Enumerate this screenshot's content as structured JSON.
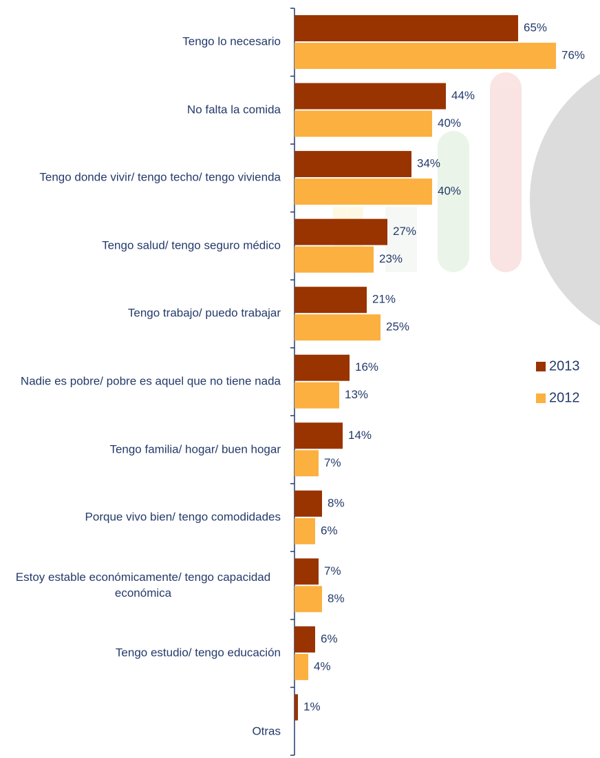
{
  "chart_data": {
    "type": "barh",
    "categories": [
      "Tengo lo necesario",
      "No falta la comida",
      "Tengo donde vivir/ tengo techo/ tengo vivienda",
      "Tengo salud/ tengo seguro médico",
      "Tengo trabajo/ puedo trabajar",
      "Nadie es pobre/ pobre es aquel que no tiene nada",
      "Tengo familia/ hogar/ buen hogar",
      "Porque vivo bien/ tengo comodidades",
      "Estoy estable económicamente/ tengo capacidad económica",
      "Tengo estudio/ tengo educación",
      "Otras"
    ],
    "series": [
      {
        "name": "2013",
        "color": "#993300",
        "values": [
          65,
          44,
          34,
          27,
          21,
          16,
          14,
          8,
          7,
          6,
          1
        ],
        "value_labels": [
          "65%",
          "44%",
          "34%",
          "27%",
          "21%",
          "16%",
          "14%",
          "8%",
          "7%",
          "6%",
          "1%"
        ]
      },
      {
        "name": "2012",
        "color": "#fbb040",
        "values": [
          76,
          40,
          40,
          23,
          25,
          13,
          7,
          6,
          8,
          4,
          null
        ],
        "value_labels": [
          "76%",
          "40%",
          "40%",
          "23%",
          "25%",
          "13%",
          "7%",
          "6%",
          "8%",
          "4%",
          null
        ]
      }
    ],
    "xlim": [
      0,
      88
    ],
    "legend": "right"
  }
}
